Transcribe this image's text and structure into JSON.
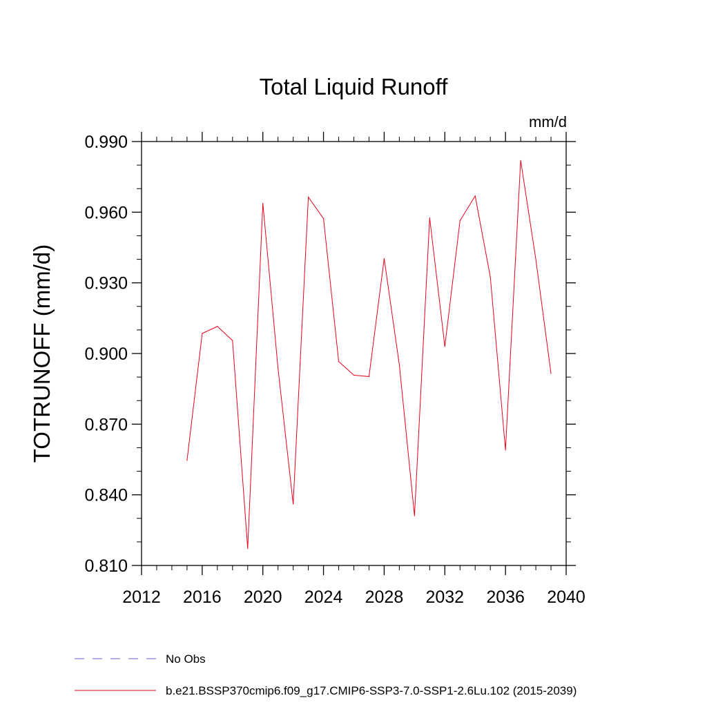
{
  "chart_data": {
    "type": "line",
    "title": "Total Liquid Runoff",
    "units_label": "mm/d",
    "ylabel": "TOTRUNOFF  (mm/d)",
    "xlabel": "",
    "xlim": [
      2012,
      2040
    ],
    "ylim": [
      0.81,
      0.99
    ],
    "x_ticks": [
      2012,
      2016,
      2020,
      2024,
      2028,
      2032,
      2036,
      2040
    ],
    "x_tick_labels": [
      "2012",
      "2016",
      "2020",
      "2024",
      "2028",
      "2032",
      "2036",
      "2040"
    ],
    "y_ticks": [
      0.81,
      0.84,
      0.87,
      0.9,
      0.93,
      0.96,
      0.99
    ],
    "y_tick_labels": [
      "0.810",
      "0.840",
      "0.870",
      "0.900",
      "0.930",
      "0.960",
      "0.990"
    ],
    "x_minor_step": 1,
    "y_minor_step": 0.01,
    "grid": false,
    "legend_position": "bottom-left",
    "series": [
      {
        "name": "b.e21.BSSP370cmip6.f09_g17.CMIP6-SSP3-7.0-SSP1-2.6Lu.102 (2015-2039)",
        "color": "#e8001c",
        "style": "solid",
        "x": [
          2015,
          2016,
          2017,
          2018,
          2019,
          2020,
          2021,
          2022,
          2023,
          2024,
          2025,
          2026,
          2027,
          2028,
          2029,
          2030,
          2031,
          2032,
          2033,
          2034,
          2035,
          2036,
          2037,
          2038,
          2039
        ],
        "values": [
          0.8546,
          0.9085,
          0.9115,
          0.9055,
          0.8172,
          0.9638,
          0.8937,
          0.8361,
          0.9664,
          0.9573,
          0.8966,
          0.8908,
          0.8902,
          0.9403,
          0.8952,
          0.8311,
          0.9576,
          0.903,
          0.9564,
          0.9669,
          0.9325,
          0.859,
          0.982,
          0.94,
          0.8915
        ]
      }
    ],
    "legend": [
      {
        "label": "No Obs",
        "color": "#6a5acd",
        "style": "dashed"
      },
      {
        "label": "b.e21.BSSP370cmip6.f09_g17.CMIP6-SSP3-7.0-SSP1-2.6Lu.102 (2015-2039)",
        "color": "#e8001c",
        "style": "solid"
      }
    ]
  }
}
